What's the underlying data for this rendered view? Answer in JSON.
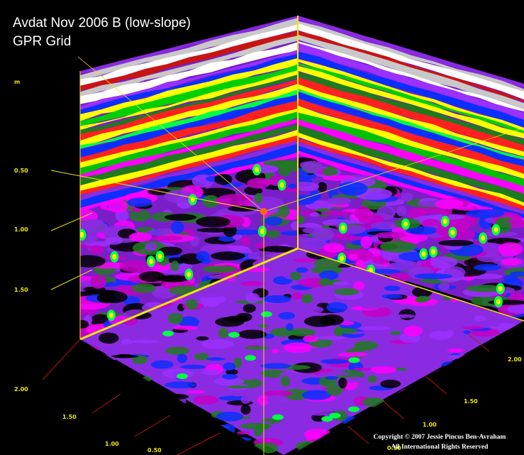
{
  "title_lines": [
    "Avdat Nov 2006 B (low-slope)",
    "GPR Grid"
  ],
  "depth_axis": {
    "unit": "m",
    "labels": [
      "0.50",
      "1.00",
      "1.50",
      "2.00"
    ]
  },
  "left_axis": {
    "labels": [
      "1.50",
      "1.00",
      "0.50"
    ]
  },
  "right_axis": {
    "labels": [
      "2.00",
      "1.50",
      "1.00",
      "0.50"
    ]
  },
  "copyright": [
    "Copyright © 2007 Jessie Pincus Ben-Avraham",
    "All International Rights Reserved"
  ]
}
